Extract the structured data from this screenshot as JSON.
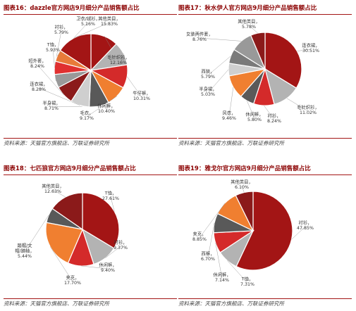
{
  "source_note": "资料来源：天猫官方旗舰店、万联证券研究所",
  "colors": [
    "#a31515",
    "#b3b3b3",
    "#d42a2a",
    "#595959",
    "#f07f30",
    "#cfcfcf",
    "#8b1a1a",
    "#7a7a7a",
    "#e03030",
    "#999999",
    "#e87b3a"
  ],
  "chart_data": [
    {
      "type": "pie",
      "title": "图表16：dazzle官方网店9月细分产品销售额占比",
      "categories": [
        "毛针织衫",
        "休闲裤",
        "牛仔裤",
        "毛衣",
        "半身裙",
        "连衣裙",
        "短外套",
        "T恤",
        "衬衫",
        "卫衣/绒衫",
        "其他类目"
      ],
      "labels": [
        "毛针织衫，\n12.16%",
        "休闲裤，\n10.40%",
        "牛仔裤，\n10.31%",
        "毛衣，\n9.17%",
        "半身裙，\n8.71%",
        "连衣裙，\n8.28%",
        "短外套，\n8.24%",
        "T恤，\n5.93%",
        "衬衫，\n5.79%",
        "卫衣/绒衫，\n5.16%",
        "其他类目，\n15.83%"
      ],
      "values": [
        12.16,
        10.4,
        10.31,
        9.17,
        8.71,
        8.28,
        8.24,
        5.93,
        5.79,
        5.16,
        15.83
      ]
    },
    {
      "type": "pie",
      "title": "图表17：秋水伊人官方网店9月细分产品销售额占比",
      "categories": [
        "连衣裙",
        "毛针织衫",
        "衬衫",
        "休闲裤",
        "风衣",
        "半身裙",
        "西装",
        "女装两件套",
        "其他类目"
      ],
      "labels": [
        "连衣裙，\n30.51%",
        "毛针织衫，\n11.02%",
        "衬衫，\n8.24%",
        "休闲裤，\n5.80%",
        "风衣，\n9.46%",
        "半身裙，\n5.03%",
        "西装，\n5.79%",
        "女装两件套，\n8.76%",
        "其他类目，\n5.78%"
      ],
      "values": [
        30.51,
        11.02,
        8.24,
        5.8,
        9.46,
        5.03,
        5.79,
        8.76,
        5.78
      ]
    },
    {
      "type": "pie",
      "title": "图表18：七匹狼官方网店9月细分产品销售额占比",
      "categories": [
        "T恤",
        "衬衫",
        "休闲裤",
        "夹克",
        "踏帽/文帽/踏袖",
        "其他类目"
      ],
      "labels": [
        "T恤，\n27.61%",
        "衬衫，\n9.37%",
        "休闲裤，\n9.40%",
        "夹克，\n17.70%",
        "踏帽/文\n帽/踏袖，\n5.44%",
        "其他类目，\n12.63%"
      ],
      "values": [
        27.61,
        9.37,
        9.4,
        17.7,
        5.44,
        12.63
      ]
    },
    {
      "type": "pie",
      "title": "图表19：雅戈尔官方网店9月细分产品销售额占比",
      "categories": [
        "衬衫",
        "T恤",
        "休闲裤",
        "西裤",
        "夹克",
        "其他类目"
      ],
      "labels": [
        "衬衫，\n47.85%",
        "T恤，\n7.31%",
        "休闲裤，\n7.14%",
        "西裤，\n6.70%",
        "夹克，\n8.85%",
        "其他类目，\n6.10%"
      ],
      "values": [
        47.85,
        7.31,
        7.14,
        6.7,
        8.85,
        6.1
      ]
    }
  ]
}
